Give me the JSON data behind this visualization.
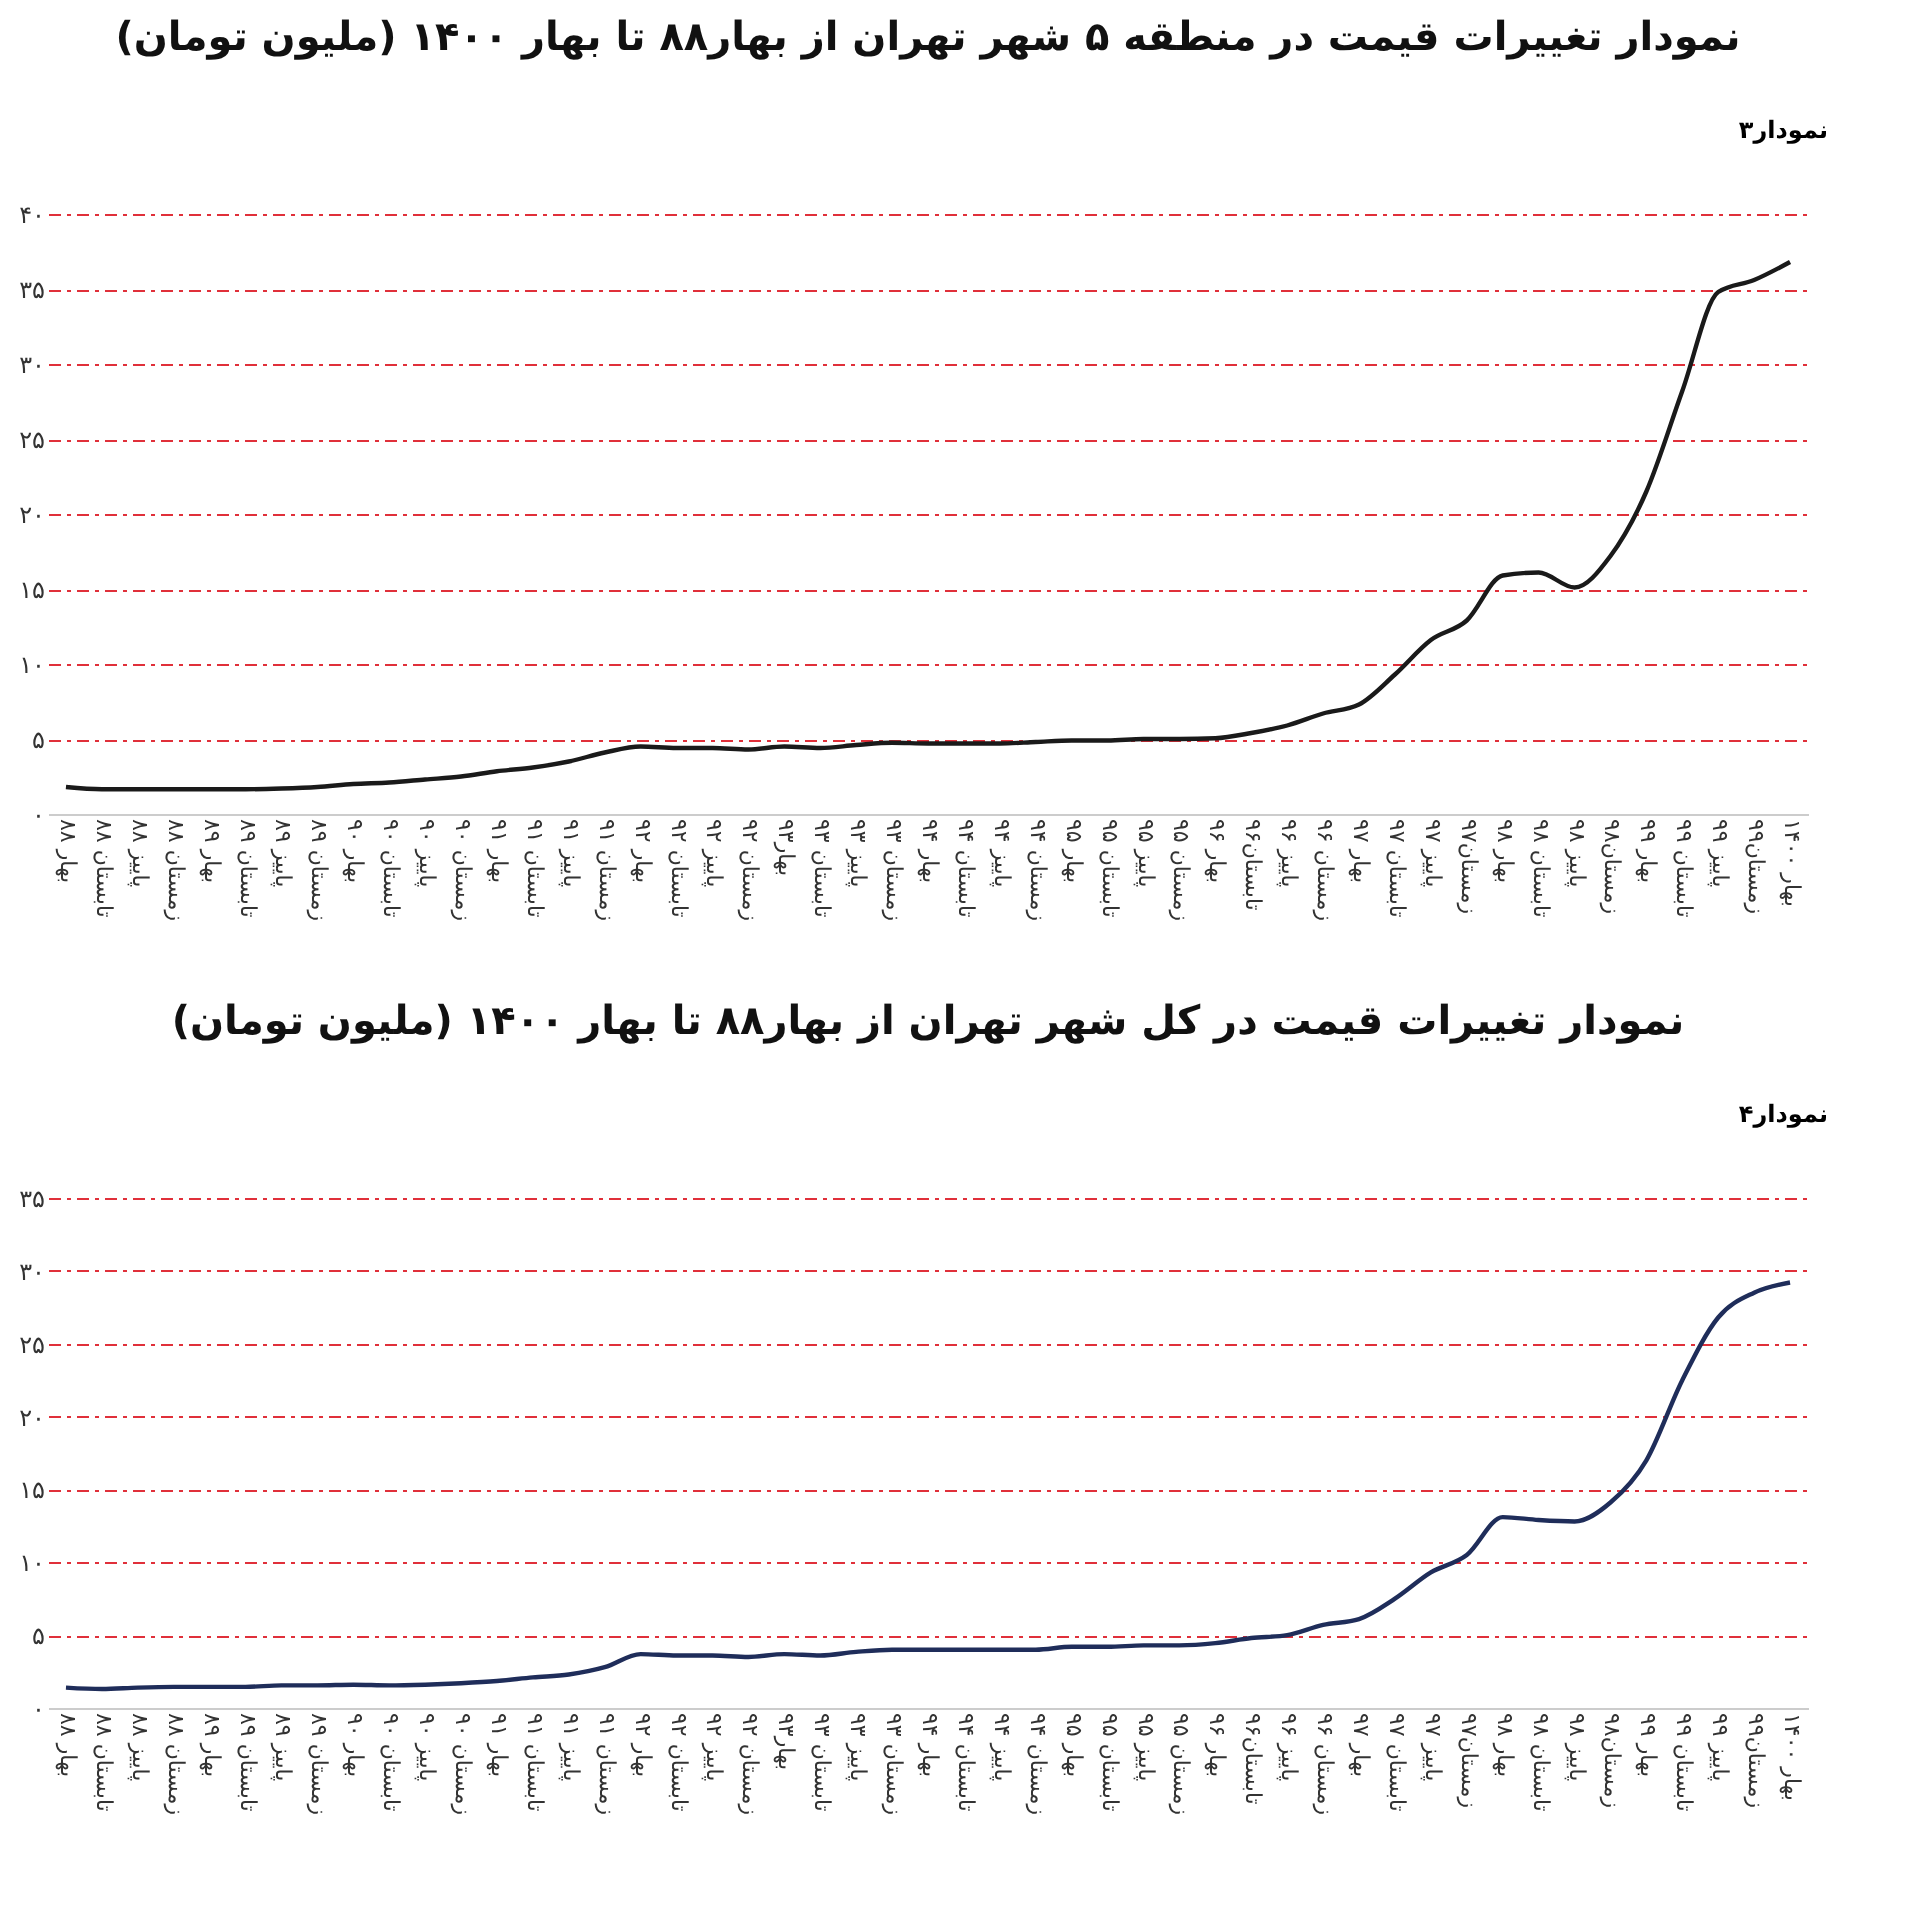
{
  "chart_data": [
    {
      "type": "line",
      "title": "نمودار تغییرات قیمت در منطقه ۵ شهر تهران از بهار۸۸ تا بهار ۱۴۰۰  (ملیون تومان)",
      "annotations": [
        "نمودار۳"
      ],
      "categories": [
        "بهار ۸۸",
        "تابستان ۸۸",
        "پاییز ۸۸",
        "زمستان ۸۸",
        "بهار ۸۹",
        "تابستان ۸۹",
        "پاییز ۸۹",
        "زمستان ۸۹",
        "بهار ۹۰",
        "تابستان ۹۰",
        "پاییز ۹۰",
        "زمستان ۹۰",
        "بهار ۹۱",
        "تابستان ۹۱",
        "پاییز ۹۱",
        "زمستان ۹۱",
        "بهار ۹۲",
        "تابستان ۹۲",
        "پاییز ۹۲",
        "زمستان ۹۲",
        "بهار۹۳",
        "تابستان ۹۳",
        "پاییز ۹۳",
        "زمستان ۹۳",
        "بهار ۹۴",
        "تابستان ۹۴",
        "پاییز ۹۴",
        "زمستان ۹۴",
        "بهار ۹۵",
        "تابستان ۹۵",
        "پاییز ۹۵",
        "زمستان ۹۵",
        "بهار ۹۶",
        "تابستان۹۶",
        "پاییز ۹۶",
        "زمستان ۹۶",
        "بهار ۹۷",
        "تابستان ۹۷",
        "پاییز ۹۷",
        "زمستان۹۷",
        "بهار ۹۸",
        "تابستان ۹۸",
        "پاییز ۹۸",
        "زمستان۹۸",
        "بهار ۹۹",
        "تابستان ۹۹",
        "پاییز ۹۹",
        "زمستان۹۹",
        "بهار ۱۴۰۰"
      ],
      "series": [
        {
          "color": "#1a1a1a",
          "values": [
            1.8,
            1.65,
            1.65,
            1.65,
            1.65,
            1.65,
            1.7,
            1.8,
            2.0,
            2.1,
            2.3,
            2.5,
            2.85,
            3.1,
            3.5,
            4.1,
            4.5,
            4.4,
            4.4,
            4.3,
            4.5,
            4.4,
            4.6,
            4.75,
            4.7,
            4.7,
            4.7,
            4.8,
            4.9,
            4.9,
            5.0,
            5.0,
            5.05,
            5.4,
            5.9,
            6.7,
            7.3,
            9.3,
            11.6,
            12.9,
            15.9,
            16.1,
            15.1,
            17.2,
            21.5,
            28.2,
            34.8,
            35.6,
            36.8
          ]
        }
      ],
      "ylim": [
        0,
        40
      ],
      "yticks": [
        {
          "value": 0,
          "label": "۰"
        },
        {
          "value": 5,
          "label": "۵"
        },
        {
          "value": 10,
          "label": "۱۰"
        },
        {
          "value": 15,
          "label": "۱۵"
        },
        {
          "value": 20,
          "label": "۲۰"
        },
        {
          "value": 25,
          "label": "۲۵"
        },
        {
          "value": 30,
          "label": "۳۰"
        },
        {
          "value": 35,
          "label": "۳۵"
        },
        {
          "value": 40,
          "label": "۴۰"
        }
      ],
      "grid": "y"
    },
    {
      "type": "line",
      "title": "نمودار تغییرات قیمت در کل شهر تهران از بهار۸۸ تا بهار ۱۴۰۰  (ملیون تومان)",
      "annotations": [
        "نمودار۴"
      ],
      "categories": [
        "بهار ۸۸",
        "تابستان ۸۸",
        "پاییز ۸۸",
        "زمستان ۸۸",
        "بهار ۸۹",
        "تابستان ۸۹",
        "پاییز ۸۹",
        "زمستان ۸۹",
        "بهار ۹۰",
        "تابستان ۹۰",
        "پاییز ۹۰",
        "زمستان ۹۰",
        "بهار ۹۱",
        "تابستان ۹۱",
        "پاییز ۹۱",
        "زمستان ۹۱",
        "بهار ۹۲",
        "تابستان ۹۲",
        "پاییز ۹۲",
        "زمستان ۹۲",
        "بهار۹۳",
        "تابستان ۹۳",
        "پاییز ۹۳",
        "زمستان ۹۳",
        "بهار ۹۴",
        "تابستان ۹۴",
        "پاییز ۹۴",
        "زمستان ۹۴",
        "بهار ۹۵",
        "تابستان ۹۵",
        "پاییز ۹۵",
        "زمستان ۹۵",
        "بهار ۹۶",
        "تابستان۹۶",
        "پاییز ۹۶",
        "زمستان ۹۶",
        "بهار ۹۷",
        "تابستان ۹۷",
        "پاییز ۹۷",
        "زمستان۹۷",
        "بهار ۹۸",
        "تابستان ۹۸",
        "پاییز ۹۸",
        "زمستان۹۸",
        "بهار ۹۹",
        "تابستان ۹۹",
        "پاییز ۹۹",
        "زمستان۹۹",
        "بهار ۱۴۰۰"
      ],
      "series": [
        {
          "color": "#1f2d5a",
          "values": [
            1.4,
            1.3,
            1.4,
            1.45,
            1.45,
            1.45,
            1.55,
            1.55,
            1.6,
            1.55,
            1.6,
            1.7,
            1.85,
            2.1,
            2.3,
            2.8,
            3.7,
            3.6,
            3.6,
            3.5,
            3.7,
            3.6,
            3.85,
            4.0,
            4.0,
            4.0,
            4.0,
            4.0,
            4.2,
            4.2,
            4.3,
            4.3,
            4.45,
            4.8,
            5.0,
            5.7,
            6.1,
            7.5,
            9.3,
            10.5,
            13.1,
            12.9,
            12.8,
            14.1,
            17.0,
            22.5,
            26.8,
            28.5,
            29.2
          ]
        }
      ],
      "ylim": [
        0,
        35
      ],
      "yticks": [
        {
          "value": 0,
          "label": "۰"
        },
        {
          "value": 5,
          "label": "۵"
        },
        {
          "value": 10,
          "label": "۱۰"
        },
        {
          "value": 15,
          "label": "۱۵"
        },
        {
          "value": 20,
          "label": "۲۰"
        },
        {
          "value": 25,
          "label": "۲۵"
        },
        {
          "value": 30,
          "label": "۳۰"
        },
        {
          "value": 35,
          "label": "۳۵"
        }
      ],
      "grid": "y"
    }
  ]
}
